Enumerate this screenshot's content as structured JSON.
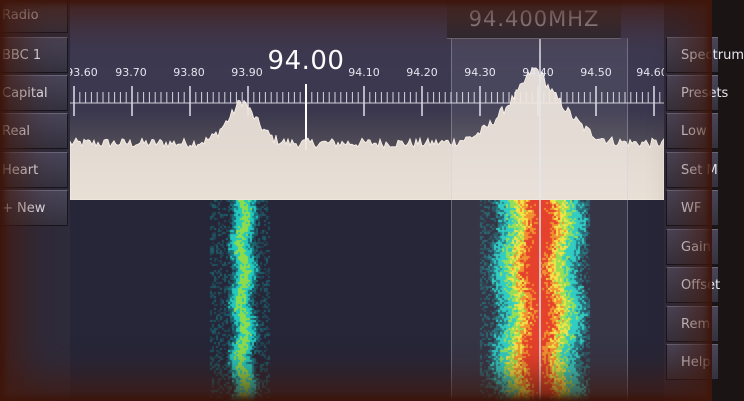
{
  "stations": [
    {
      "label": "Radio"
    },
    {
      "label": "BBC 1"
    },
    {
      "label": "Capital"
    },
    {
      "label": "Real"
    },
    {
      "label": "Heart"
    },
    {
      "label": "+ New"
    }
  ],
  "menu": [
    {
      "label": "Spectrum"
    },
    {
      "label": "Presets"
    },
    {
      "label": "Low"
    },
    {
      "label": "Set M"
    },
    {
      "label": "WF"
    },
    {
      "label": "Gain"
    },
    {
      "label": "Offset"
    },
    {
      "label": "Rem"
    },
    {
      "label": "Help"
    }
  ],
  "spectrum": {
    "center_frequency": "94.00",
    "tuned_frequency": "94.400MHZ",
    "tick_labels": [
      "93.60",
      "93.70",
      "93.80",
      "93.90",
      "94.10",
      "94.20",
      "94.30",
      "94.40",
      "94.50",
      "94.60"
    ]
  },
  "colors": {
    "background": "#26222e",
    "panel": "#3e3b4c",
    "spectrum_fill": "#efe6dc",
    "waterfall_weak": "#1fc7c0",
    "waterfall_strong": "#e83a1e"
  }
}
